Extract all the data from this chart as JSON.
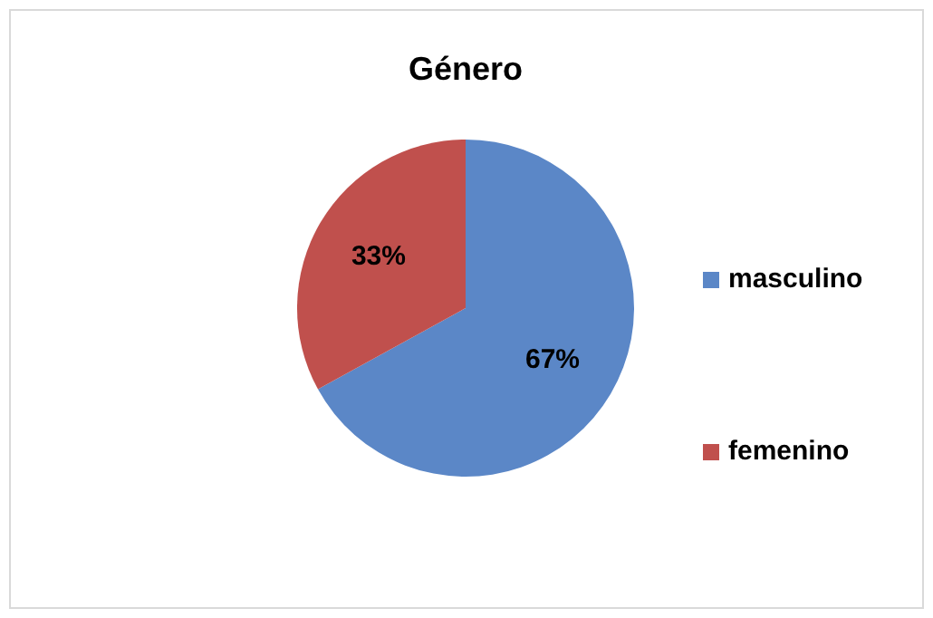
{
  "chart_data": {
    "type": "pie",
    "title": "Género",
    "categories": [
      "masculino",
      "femenino"
    ],
    "values": [
      67,
      33
    ],
    "colors": [
      "#5b87c7",
      "#c0504d"
    ],
    "value_labels": [
      "67%",
      "33%"
    ],
    "legend": "right"
  }
}
